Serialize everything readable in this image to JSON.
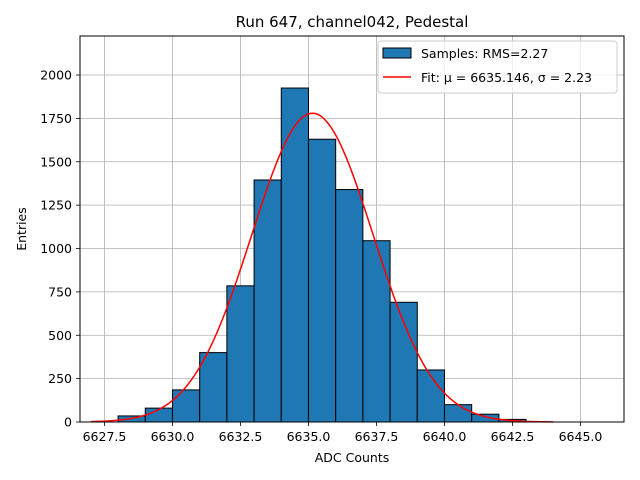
{
  "chart_data": {
    "type": "bar",
    "title": "Run 647, channel042, Pedestal",
    "xlabel": "ADC Counts",
    "ylabel": "Entries",
    "xlim": [
      6626.6,
      6646.6
    ],
    "ylim": [
      0,
      2225
    ],
    "grid": true,
    "legend_position": "top-right",
    "x_ticks": [
      6627.5,
      6630.0,
      6632.5,
      6635.0,
      6637.5,
      6640.0,
      6642.5,
      6645.0
    ],
    "x_tick_labels": [
      "6627.5",
      "6630.0",
      "6632.5",
      "6635.0",
      "6637.5",
      "6640.0",
      "6642.5",
      "6645.0"
    ],
    "y_ticks": [
      0,
      250,
      500,
      750,
      1000,
      1250,
      1500,
      1750,
      2000
    ],
    "y_tick_labels": [
      "0",
      "250",
      "500",
      "750",
      "1000",
      "1250",
      "1500",
      "1750",
      "2000"
    ],
    "histogram": {
      "name": "Samples: RMS=2.27",
      "bin_edges": [
        6628,
        6629,
        6630,
        6631,
        6632,
        6633,
        6634,
        6635,
        6636,
        6637,
        6638,
        6639,
        6640,
        6641,
        6642,
        6643
      ],
      "counts": [
        35,
        80,
        185,
        400,
        785,
        1395,
        1925,
        1630,
        1340,
        1045,
        690,
        300,
        100,
        45,
        15
      ],
      "color": "#1f77b4",
      "edge_color": "#000000"
    },
    "fit": {
      "name": "Fit: μ = 6635.146, σ = 2.23",
      "mu": 6635.146,
      "sigma": 2.23,
      "amplitude": 1780,
      "x_range": [
        6627,
        6644
      ],
      "color": "#ff0000"
    }
  }
}
